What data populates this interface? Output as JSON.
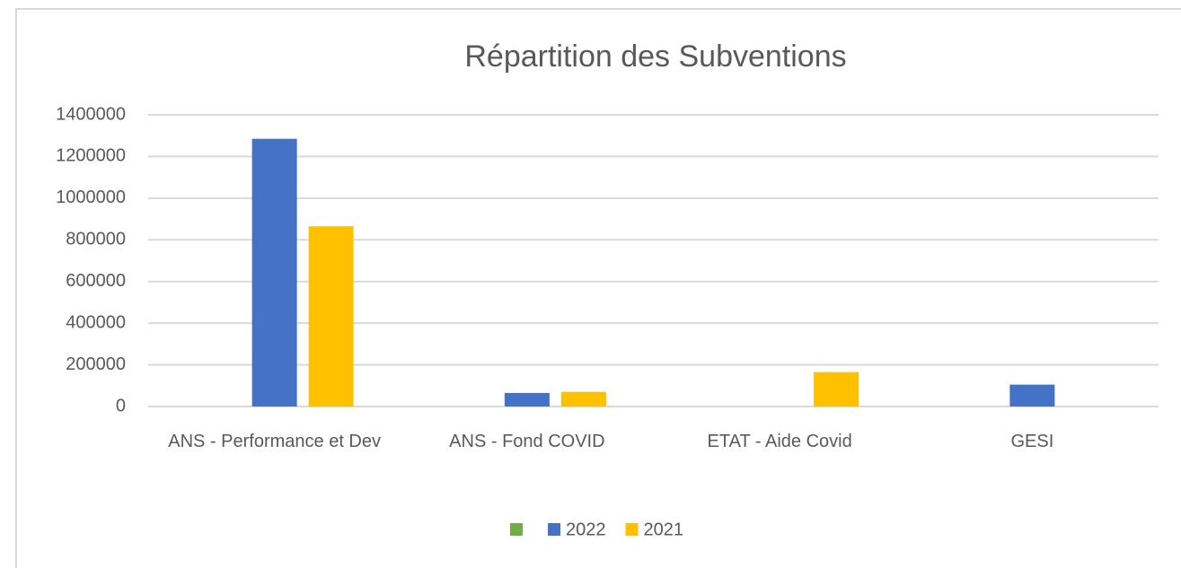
{
  "chart_data": {
    "type": "bar",
    "title": "Répartition des Subventions",
    "categories": [
      "ANS - Performance et Dev",
      "ANS - Fond COVID",
      "ETAT - Aide Covid",
      "GESI"
    ],
    "series": [
      {
        "color": "#70ad47",
        "values": [
          null,
          null,
          null,
          null
        ]
      },
      {
        "name": "2022",
        "color": "#4472c4",
        "values": [
          1285000,
          65000,
          null,
          105000
        ]
      },
      {
        "name": "2021",
        "color": "#ffc000",
        "values": [
          865000,
          70000,
          165000,
          null
        ]
      }
    ],
    "ylim": [
      0,
      1400000
    ],
    "yticks": [
      0,
      200000,
      400000,
      600000,
      800000,
      1000000,
      1200000,
      1400000
    ],
    "grid": true,
    "legend": "bottom"
  }
}
